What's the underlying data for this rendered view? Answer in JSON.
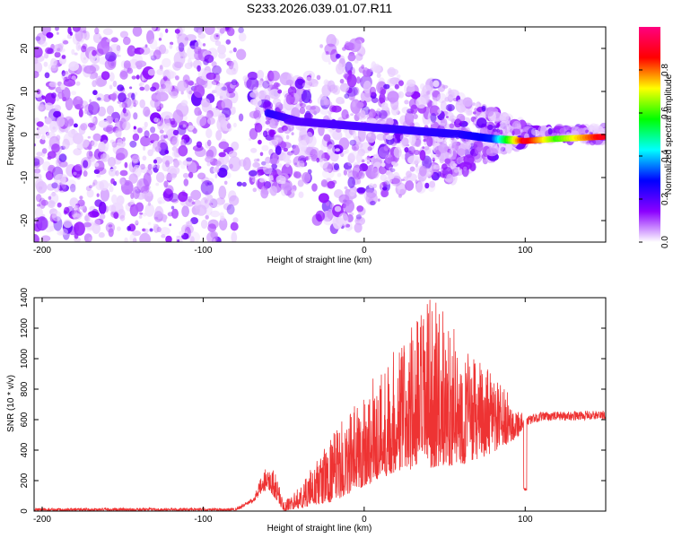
{
  "title": "S233.2026.039.01.07.R11",
  "chart_data": [
    {
      "type": "heatmap",
      "title": "S233.2026.039.01.07.R11",
      "xlabel": "Height of straight line (km)",
      "ylabel": "Frequency (Hz)",
      "xlim": [
        -205,
        150
      ],
      "ylim": [
        -25,
        25
      ],
      "x_ticks": [
        -200,
        -100,
        0,
        100
      ],
      "y_ticks": [
        -20,
        -10,
        0,
        10,
        20
      ],
      "colorbar": {
        "label": "Normalized spectral amplitude",
        "range": [
          0.0,
          1.0
        ],
        "ticks": [
          0.0,
          0.2,
          0.4,
          0.6,
          0.8
        ],
        "tick_labels": [
          "0.0",
          "0.2",
          "0.4",
          "0.6",
          "0.8"
        ],
        "colors": [
          "#ffffff",
          "#8b00ff",
          "#0000ff",
          "#00ffff",
          "#00ff00",
          "#ffff00",
          "#ff0000",
          "#ff0080"
        ]
      },
      "signal_band": {
        "description_points_x": [
          -60,
          -40,
          60,
          80,
          100,
          120,
          150
        ],
        "center_freq_hz": [
          5,
          3,
          0,
          -1,
          -1.5,
          -1,
          -0.5
        ],
        "amplitude": [
          0.25,
          0.2,
          0.25,
          0.3,
          0.9,
          0.6,
          0.9
        ]
      }
    },
    {
      "type": "line",
      "xlabel": "Height of straight line (km)",
      "ylabel": "SNR (10 * v/v)",
      "xlim": [
        -205,
        150
      ],
      "ylim": [
        0,
        1400
      ],
      "x_ticks": [
        -200,
        -100,
        0,
        100
      ],
      "y_ticks": [
        0,
        200,
        400,
        600,
        800,
        1000,
        1200,
        1400
      ],
      "series": [
        {
          "name": "SNR",
          "color": "#ee3333",
          "envelope_x": [
            -205,
            -80,
            -70,
            -60,
            -55,
            -50,
            -40,
            -20,
            0,
            20,
            40,
            50,
            60,
            80,
            95,
            100,
            110,
            150
          ],
          "envelope_lo": [
            0,
            0,
            50,
            150,
            80,
            0,
            20,
            60,
            160,
            260,
            280,
            300,
            300,
            380,
            480,
            560,
            590,
            600
          ],
          "envelope_hi": [
            20,
            20,
            80,
            310,
            260,
            60,
            160,
            500,
            800,
            1100,
            1400,
            1330,
            1100,
            900,
            700,
            620,
            650,
            660
          ]
        }
      ]
    }
  ]
}
